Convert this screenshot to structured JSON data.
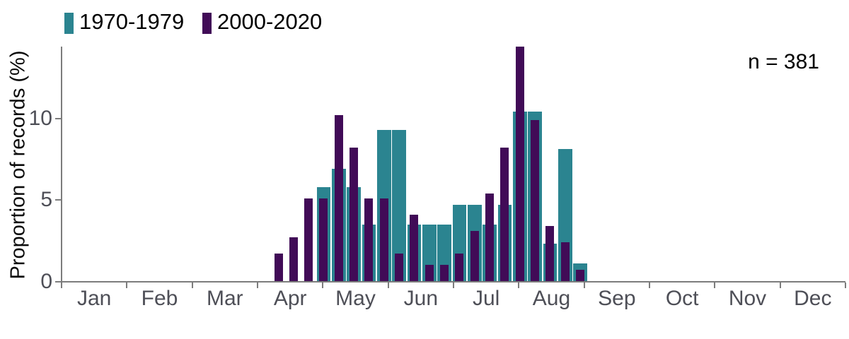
{
  "chart_data": {
    "type": "bar",
    "title": "",
    "xlabel": "",
    "ylabel": "Proportion of records (%)",
    "annotation": "n = 381",
    "legend_position": "top-left",
    "grid": false,
    "bar_mode": "overlay",
    "bin": "weekly",
    "ylim": [
      0,
      14.5
    ],
    "y_ticks": [
      0,
      5,
      10
    ],
    "x_tick_labels": [
      "Jan",
      "Feb",
      "Mar",
      "Apr",
      "May",
      "Jun",
      "Jul",
      "Aug",
      "Sep",
      "Oct",
      "Nov",
      "Dec"
    ],
    "week_centers": [
      "Apr 10",
      "Apr 17",
      "Apr 24",
      "May 1",
      "May 8",
      "May 15",
      "May 22",
      "May 29",
      "Jun 5",
      "Jun 12",
      "Jun 19",
      "Jun 26",
      "Jul 3",
      "Jul 10",
      "Jul 17",
      "Jul 24",
      "Jul 31",
      "Aug 7",
      "Aug 14",
      "Aug 21",
      "Aug 28"
    ],
    "series": [
      {
        "name": "1970-1979",
        "color": "#2B8490",
        "values": [
          0,
          0,
          0,
          5.8,
          6.9,
          5.8,
          3.5,
          9.3,
          9.3,
          3.5,
          3.5,
          3.5,
          4.7,
          4.7,
          3.5,
          4.7,
          10.4,
          10.4,
          2.3,
          8.1,
          1.1
        ]
      },
      {
        "name": "2000-2020",
        "color": "#410B57",
        "values": [
          1.7,
          2.7,
          5.1,
          5.1,
          10.2,
          8.2,
          5.1,
          5.1,
          1.7,
          4.1,
          1.0,
          1.0,
          1.7,
          3.1,
          5.4,
          8.2,
          14.4,
          9.9,
          3.4,
          2.4,
          0.7
        ]
      }
    ]
  }
}
